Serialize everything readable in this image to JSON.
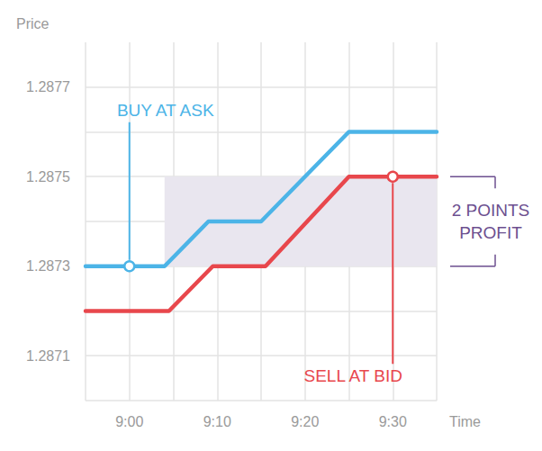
{
  "chart_data": {
    "type": "line",
    "x_label": "Time",
    "y_label": "Price",
    "xlim": [
      535,
      575
    ],
    "xticks": [
      {
        "value": 540,
        "label": "9:00"
      },
      {
        "value": 550,
        "label": "9:10"
      },
      {
        "value": 560,
        "label": "9:20"
      },
      {
        "value": 570,
        "label": "9:30"
      }
    ],
    "ylim": [
      1.287,
      1.2878
    ],
    "yticks": [
      1.2871,
      1.2873,
      1.2875,
      1.2877
    ],
    "grid": true,
    "series": [
      {
        "color": "#4cb4e7",
        "x": [
          535,
          544,
          549,
          555,
          565,
          575
        ],
        "values": [
          1.2873,
          1.2873,
          1.2874,
          1.2874,
          1.2876,
          1.2876
        ]
      },
      {
        "color": "#e8474c",
        "x": [
          535,
          544.5,
          549.5,
          555.5,
          565,
          575
        ],
        "values": [
          1.2872,
          1.2872,
          1.2873,
          1.2873,
          1.2875,
          1.2875
        ]
      }
    ],
    "annotations": [
      {
        "text": "BUY AT ASK",
        "x": 540,
        "y": 1.2873,
        "color": "#4cb4e7"
      },
      {
        "text": "SELL AT BID",
        "x": 570,
        "y": 1.2875,
        "color": "#e8474c"
      },
      {
        "text": "2 POINTS\nPROFIT",
        "x_from": 544,
        "x_to": 575,
        "y_from": 1.2873,
        "y_to": 1.2875,
        "color": "#6c4f8f"
      }
    ]
  }
}
